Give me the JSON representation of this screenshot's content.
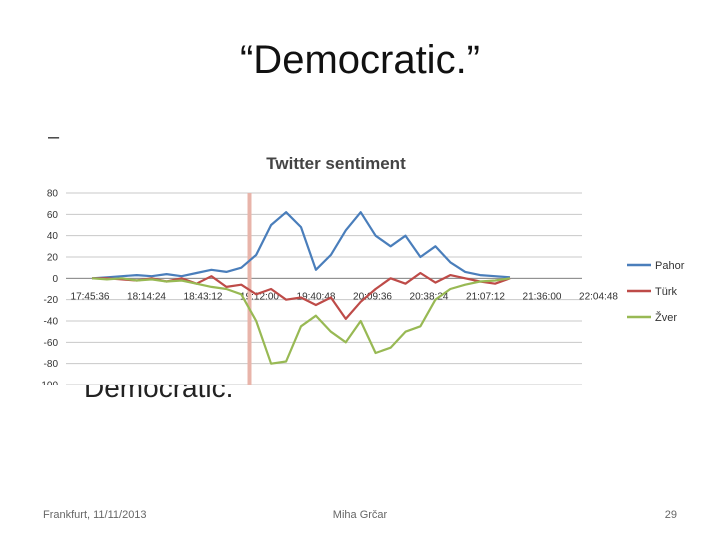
{
  "slide": {
    "title": "“Democratic.”",
    "bullet_fragment": "–",
    "partially_hidden_text": "Democratic."
  },
  "footer": {
    "left": "Frankfurt, 11/11/2013",
    "center": "Miha Grčar",
    "right": "29"
  },
  "colors": {
    "Pahor": "#4a7ebb",
    "Türk": "#be4b48",
    "Žver": "#98b954",
    "marker": "#e8b4aa"
  },
  "chart_data": {
    "type": "line",
    "title": "Twitter sentiment",
    "xlabel": "",
    "ylabel": "",
    "ylim": [
      -100,
      80
    ],
    "yticks": [
      80,
      60,
      40,
      20,
      0,
      -20,
      -40,
      -60,
      -80,
      -100
    ],
    "x_tick_labels": [
      "17:45:36",
      "18:14:24",
      "18:43:12",
      "19:12:00",
      "19:40:48",
      "20:09:36",
      "20:38:24",
      "21:07:12",
      "21:36:00",
      "22:04:48"
    ],
    "x_points": 29,
    "x_index_range": [
      0,
      36
    ],
    "vertical_marker_at": "19:12:00",
    "grid": true,
    "legend_position": "right",
    "series": [
      {
        "name": "Pahor",
        "values": [
          0,
          1,
          2,
          3,
          2,
          4,
          2,
          5,
          8,
          6,
          10,
          22,
          50,
          62,
          48,
          8,
          22,
          45,
          62,
          40,
          30,
          40,
          20,
          30,
          15,
          6,
          3,
          2,
          1
        ]
      },
      {
        "name": "Türk",
        "values": [
          0,
          0,
          -1,
          -2,
          0,
          -3,
          0,
          -5,
          2,
          -8,
          -6,
          -15,
          -10,
          -20,
          -18,
          -25,
          -18,
          -38,
          -22,
          -10,
          0,
          -5,
          5,
          -4,
          3,
          0,
          -3,
          -5,
          0
        ]
      },
      {
        "name": "Žver",
        "values": [
          0,
          -1,
          0,
          -2,
          -1,
          -3,
          -2,
          -5,
          -8,
          -10,
          -15,
          -40,
          -80,
          -78,
          -45,
          -35,
          -50,
          -60,
          -40,
          -70,
          -65,
          -50,
          -45,
          -20,
          -10,
          -6,
          -3,
          -2,
          0
        ]
      }
    ]
  }
}
